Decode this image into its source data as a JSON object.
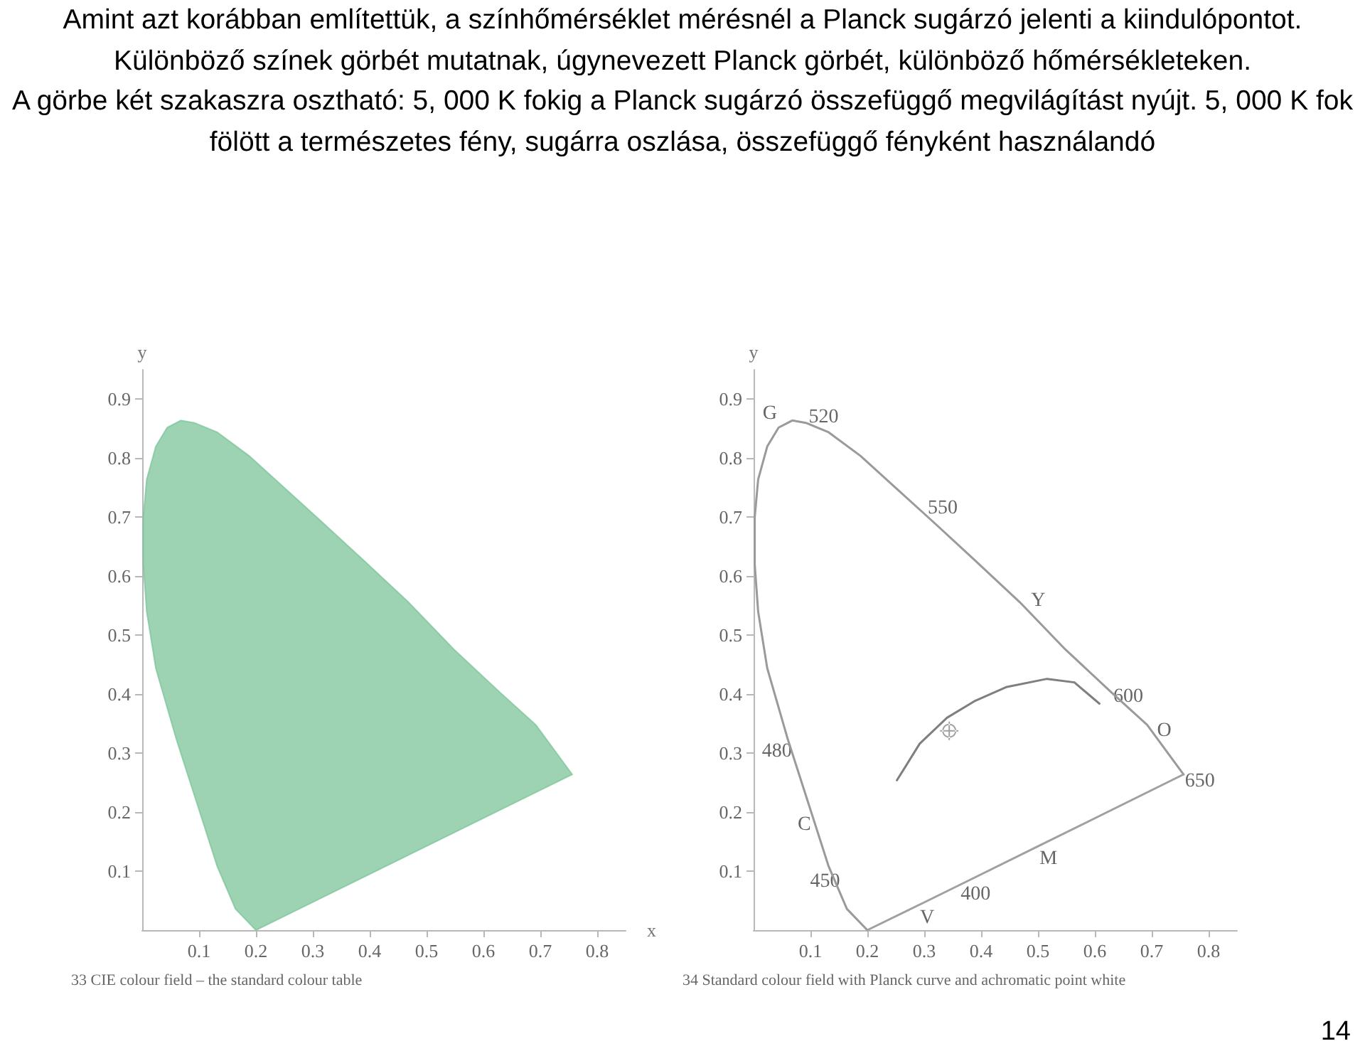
{
  "chart_data": [
    {
      "type": "other",
      "title": "Amint azt korábban említettük, a színhőmérséklet mérésnél a Planck sugárzó jelenti a kiindulópontot.\nKülönböző színek görbét mutatnak, úgynevezett Planck görbét, különböző hőmérsékleteken.\nA görbe két szakaszra osztható: 5, 000 K fokig a Planck sugárzó összefüggő megvilágítást nyújt. 5, 000 K fok fölött a természetes fény, sugárra oszlása, összefüggő fényként használandó",
      "annotations": [
        "14"
      ]
    },
    {
      "type": "area",
      "xlabel": "x",
      "ylabel": "y",
      "xlim": [
        0,
        0.85
      ],
      "ylim": [
        0,
        0.95
      ],
      "xticks": [
        0.1,
        0.2,
        0.3,
        0.4,
        0.5,
        0.6,
        0.7,
        0.8
      ],
      "yticks": [
        0.1,
        0.2,
        0.3,
        0.4,
        0.5,
        0.6,
        0.7,
        0.8,
        0.9
      ],
      "series": [
        {
          "color": "#7cc49a",
          "x": [
            0.2,
            0.164,
            0.132,
            0.1,
            0.06,
            0.024,
            0.008,
            0.002,
            0.002,
            0.008,
            0.024,
            0.044,
            0.068,
            0.092,
            0.132,
            0.188,
            0.252,
            0.316,
            0.388,
            0.468,
            0.548,
            0.628,
            0.692,
            0.756,
            0.2
          ],
          "values": [
            0.0,
            0.036,
            0.108,
            0.204,
            0.324,
            0.444,
            0.54,
            0.62,
            0.7,
            0.764,
            0.82,
            0.852,
            0.864,
            0.86,
            0.844,
            0.804,
            0.748,
            0.692,
            0.628,
            0.556,
            0.476,
            0.404,
            0.348,
            0.264,
            0.0
          ]
        }
      ],
      "annotations": [
        "33 CIE colour field – the standard colour table"
      ]
    },
    {
      "type": "line",
      "ylabel": "y",
      "xlim": [
        0,
        0.85
      ],
      "ylim": [
        0,
        0.95
      ],
      "xticks": [
        0.1,
        0.2,
        0.3,
        0.4,
        0.5,
        0.6,
        0.7,
        0.8
      ],
      "yticks": [
        0.1,
        0.2,
        0.3,
        0.4,
        0.5,
        0.6,
        0.7,
        0.8,
        0.9
      ],
      "line_style": "solid",
      "series": [
        {
          "color": "#9a9a9a",
          "x": [
            0.2,
            0.164,
            0.132,
            0.1,
            0.06,
            0.024,
            0.008,
            0.002,
            0.002,
            0.008,
            0.024,
            0.044,
            0.068,
            0.092,
            0.132,
            0.188,
            0.252,
            0.316,
            0.388,
            0.468,
            0.548,
            0.628,
            0.692,
            0.756
          ],
          "values": [
            0.0,
            0.036,
            0.108,
            0.204,
            0.324,
            0.444,
            0.54,
            0.62,
            0.7,
            0.764,
            0.82,
            0.852,
            0.864,
            0.86,
            0.844,
            0.804,
            0.748,
            0.692,
            0.628,
            0.556,
            0.476,
            0.404,
            0.348,
            0.264
          ]
        },
        {
          "color": "#a0a0a0",
          "x": [
            0.2,
            0.3,
            0.38,
            0.5,
            0.756
          ],
          "values": [
            0.0,
            0.047,
            0.085,
            0.142,
            0.264
          ]
        },
        {
          "color": "#7f7f7f",
          "x": [
            0.252,
            0.292,
            0.34,
            0.388,
            0.444,
            0.516,
            0.564,
            0.608
          ],
          "values": [
            0.254,
            0.316,
            0.36,
            0.388,
            0.412,
            0.426,
            0.42,
            0.384
          ]
        },
        {
          "type": "scatter",
          "marker": "cross",
          "color": "#888888",
          "x": [
            0.344
          ],
          "values": [
            0.338
          ]
        }
      ],
      "annotations": [
        {
          "text": "V",
          "x": 0.3,
          "y": 0.047
        },
        {
          "text": "450",
          "x": 0.132,
          "y": 0.108
        },
        {
          "text": "C",
          "x": 0.1,
          "y": 0.204
        },
        {
          "text": "480",
          "x": 0.06,
          "y": 0.324
        },
        {
          "text": "G",
          "x": 0.044,
          "y": 0.852
        },
        {
          "text": "520",
          "x": 0.132,
          "y": 0.844
        },
        {
          "text": "550",
          "x": 0.316,
          "y": 0.692
        },
        {
          "text": "Y",
          "x": 0.468,
          "y": 0.556
        },
        {
          "text": "600",
          "x": 0.628,
          "y": 0.404
        },
        {
          "text": "O",
          "x": 0.692,
          "y": 0.348
        },
        {
          "text": "650",
          "x": 0.756,
          "y": 0.264
        },
        {
          "text": "M",
          "x": 0.5,
          "y": 0.142
        },
        {
          "text": "400",
          "x": 0.38,
          "y": 0.085
        },
        "34 Standard colour field with Planck curve and achromatic point white"
      ]
    }
  ]
}
